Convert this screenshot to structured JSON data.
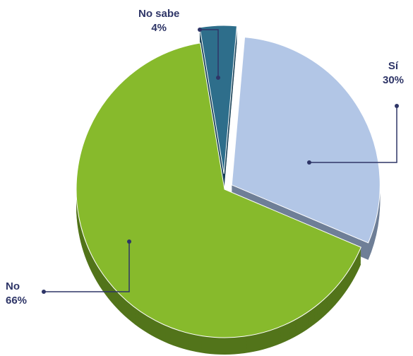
{
  "chart_data": {
    "type": "pie",
    "style": "3d-exploded",
    "slices": [
      {
        "label": "Sí",
        "value": 30,
        "value_label": "30%",
        "color": "#b2c6e6",
        "side_color": "#6f7f97"
      },
      {
        "label": "No",
        "value": 66,
        "value_label": "66%",
        "color": "#87ba2c",
        "side_color": "#52741a"
      },
      {
        "label": "No sabe",
        "value": 4,
        "value_label": "4%",
        "color": "#2e6e8b",
        "side_color": "#1a4257"
      }
    ],
    "leader_line_color": "#2e3567",
    "label_color": "#2e3567"
  }
}
